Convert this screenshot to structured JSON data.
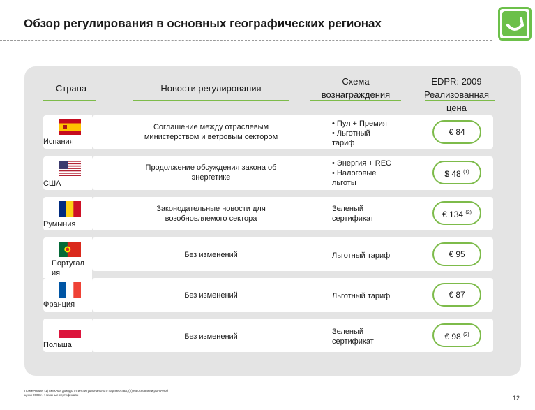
{
  "title": "Обзор регулирования в основных географических регионах",
  "headers": {
    "country": "Страна",
    "news": "Новости регулирования",
    "scheme_line1": "Схема",
    "scheme_line2": "вознаграждения",
    "price_line1": "EDPR: 2009",
    "price_line2": "Реализованная",
    "price_line3": "цена"
  },
  "rows": [
    {
      "country": "Испания",
      "news_line1": "Соглашение между отраслевым",
      "news_line2": "министерством и ветровым сектором",
      "scheme_line1": "• Пул + Премия",
      "scheme_line2": "• Льготный",
      "scheme_line3": "тариф",
      "price": "€ 84",
      "sup": ""
    },
    {
      "country": "США",
      "news_line1": "Продолжение обсуждения закона об",
      "news_line2": "энергетике",
      "scheme_line1": "• Энергия + REC",
      "scheme_line2": "• Налоговые",
      "scheme_line3": "льготы",
      "price": "$ 48",
      "sup": "(1)"
    },
    {
      "country": "Румыния",
      "news_line1": "Законодательные новости для",
      "news_line2": "возобновляемого сектора",
      "scheme_line1": "Зеленый",
      "scheme_line2": "сертификат",
      "scheme_line3": "",
      "price": "€ 134",
      "sup": "(2)"
    },
    {
      "country_line1": "Португал",
      "country_line2": "ия",
      "news_line1": "Без изменений",
      "news_line2": "",
      "scheme_line1": "Льготный тариф",
      "scheme_line2": "",
      "scheme_line3": "",
      "price": "€ 95",
      "sup": ""
    },
    {
      "country": "Франция",
      "news_line1": "Без изменений",
      "news_line2": "",
      "scheme_line1": "Льготный тариф",
      "scheme_line2": "",
      "scheme_line3": "",
      "price": "€ 87",
      "sup": ""
    },
    {
      "country": "Польша",
      "news_line1": "Без изменений",
      "news_line2": "",
      "scheme_line1": "Зеленый",
      "scheme_line2": "сертификат",
      "scheme_line3": "",
      "price": "€ 98",
      "sup": "(2)"
    }
  ],
  "footnote_line1": "Примечание: (1) включая доходы от институционального партнерства; (2) на основании рыночной",
  "footnote_line2": "цены 2009 г. + зеленые сертификаты",
  "page_number": "12",
  "colors": {
    "accent": "#7dbb4a",
    "logo": "#6cc04a",
    "panel": "#e4e4e4"
  },
  "icons": {
    "logo": "smile-logo-icon",
    "flags": [
      "spain-flag-icon",
      "usa-flag-icon",
      "romania-flag-icon",
      "portugal-flag-icon",
      "france-flag-icon",
      "poland-flag-icon"
    ]
  }
}
